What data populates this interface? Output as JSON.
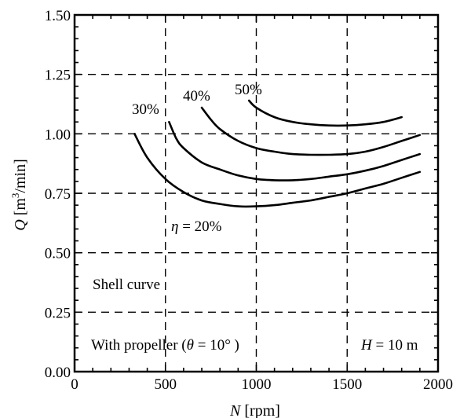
{
  "chart_data": {
    "type": "line",
    "xlabel_var": "N",
    "xlabel_unit": "[rpm]",
    "ylabel_var": "Q",
    "ylabel_unit_pre": "[m",
    "ylabel_unit_sup": "3",
    "ylabel_unit_post": "/min]",
    "xlim": [
      0,
      2000
    ],
    "ylim": [
      0,
      1.5
    ],
    "x_ticks": [
      "0",
      "500",
      "1000",
      "1500",
      "2000"
    ],
    "y_ticks": [
      "0.00",
      "0.25",
      "0.50",
      "0.75",
      "1.00",
      "1.25",
      "1.50"
    ],
    "grid": true,
    "series": [
      {
        "name": "η = 20%",
        "x": [
          330,
          400,
          500,
          600,
          700,
          800,
          900,
          1000,
          1100,
          1200,
          1300,
          1400,
          1500,
          1600,
          1700,
          1800,
          1900
        ],
        "y": [
          1.0,
          0.9,
          0.81,
          0.755,
          0.72,
          0.705,
          0.695,
          0.695,
          0.7,
          0.71,
          0.72,
          0.735,
          0.75,
          0.77,
          0.79,
          0.815,
          0.84
        ]
      },
      {
        "name": "30%",
        "x": [
          520,
          560,
          600,
          700,
          800,
          900,
          1000,
          1100,
          1200,
          1300,
          1400,
          1500,
          1600,
          1700,
          1800,
          1900
        ],
        "y": [
          1.05,
          0.98,
          0.94,
          0.88,
          0.85,
          0.825,
          0.81,
          0.805,
          0.805,
          0.81,
          0.82,
          0.83,
          0.845,
          0.865,
          0.89,
          0.915
        ]
      },
      {
        "name": "40%",
        "x": [
          700,
          750,
          800,
          900,
          1000,
          1100,
          1200,
          1300,
          1400,
          1500,
          1600,
          1700,
          1800,
          1900
        ],
        "y": [
          1.11,
          1.06,
          1.02,
          0.97,
          0.94,
          0.925,
          0.915,
          0.912,
          0.912,
          0.915,
          0.925,
          0.945,
          0.97,
          0.995
        ]
      },
      {
        "name": "50%",
        "x": [
          960,
          1000,
          1100,
          1200,
          1300,
          1400,
          1500,
          1600,
          1700,
          1800
        ],
        "y": [
          1.14,
          1.11,
          1.07,
          1.05,
          1.04,
          1.035,
          1.035,
          1.04,
          1.05,
          1.07
        ]
      }
    ],
    "series_labels": {
      "eta_symbol": "η",
      "eta_rest": " = 20%",
      "s30": "30%",
      "s40": "40%",
      "s50": "50%"
    },
    "annotations": {
      "shell": "Shell curve",
      "propeller_pre": "With propeller (",
      "propeller_theta": "θ",
      "propeller_post": " = 10°  )",
      "head_var": "H",
      "head_rest": " = 10 m"
    }
  }
}
